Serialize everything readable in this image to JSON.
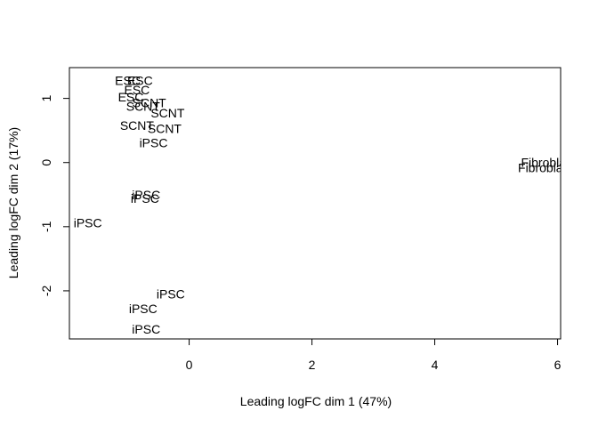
{
  "chart_data": {
    "type": "scatter",
    "title": "",
    "xlabel": "Leading logFC dim 1 (47%)",
    "ylabel": "Leading logFC dim 2 (17%)",
    "xlim": [
      -1.95,
      6.05
    ],
    "ylim": [
      -2.75,
      1.48
    ],
    "xticks": [
      0,
      2,
      4,
      6
    ],
    "yticks": [
      -2,
      -1,
      0,
      1
    ],
    "xtick_labels": [
      "0",
      "2",
      "4",
      "6"
    ],
    "ytick_labels": [
      "-2",
      "-1",
      "0",
      "1"
    ],
    "grid": false,
    "legend": "none",
    "points": [
      {
        "label": "ESC",
        "x": -1.0,
        "y": 1.28
      },
      {
        "label": "ESC",
        "x": -0.8,
        "y": 1.28
      },
      {
        "label": "ESC",
        "x": -0.85,
        "y": 1.13
      },
      {
        "label": "ESC",
        "x": -0.95,
        "y": 1.02
      },
      {
        "label": "SCNT",
        "x": -0.65,
        "y": 0.93
      },
      {
        "label": "SCNT",
        "x": -0.75,
        "y": 0.88
      },
      {
        "label": "SCNT",
        "x": -0.35,
        "y": 0.77
      },
      {
        "label": "SCNT",
        "x": -0.85,
        "y": 0.58
      },
      {
        "label": "SCNT",
        "x": -0.4,
        "y": 0.53
      },
      {
        "label": "iPSC",
        "x": -0.58,
        "y": 0.31
      },
      {
        "label": "iPSC",
        "x": -0.7,
        "y": -0.5
      },
      {
        "label": "iPSC",
        "x": -0.72,
        "y": -0.56
      },
      {
        "label": "iPSC",
        "x": -1.65,
        "y": -0.94
      },
      {
        "label": "iPSC",
        "x": -0.3,
        "y": -2.05
      },
      {
        "label": "iPSC",
        "x": -0.75,
        "y": -2.28
      },
      {
        "label": "iPSC",
        "x": -0.7,
        "y": -2.6
      },
      {
        "label": "Fibroblast",
        "x": 5.85,
        "y": 0.0
      },
      {
        "label": "Fibroblast",
        "x": 5.8,
        "y": -0.08
      }
    ]
  }
}
